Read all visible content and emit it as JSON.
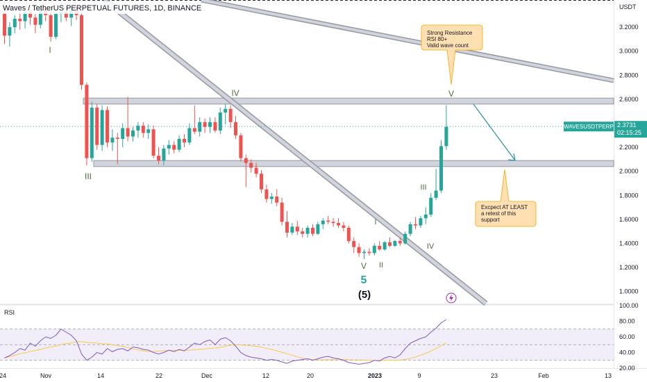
{
  "header": {
    "symbol_title": "Waves / TetherUS PERPETUAL FUTURES, 1D, BINANCE"
  },
  "price_axis": {
    "currency": "USDT",
    "ticks": [
      "3.2000",
      "3.0000",
      "2.8000",
      "2.6000",
      "2.4000",
      "2.2000",
      "2.0000",
      "1.8000",
      "1.6000",
      "1.4000",
      "1.2000",
      "1.0000"
    ]
  },
  "last_price": {
    "symbol": "WAVESUSDTPERP",
    "price": "2.3731",
    "countdown": "02:15:25"
  },
  "rsi_panel": {
    "label": "RSI",
    "ticks": [
      "100.00",
      "80.00",
      "60.00",
      "40.00",
      "20.00"
    ]
  },
  "time_axis": {
    "labels": [
      "24",
      "Nov",
      "14",
      "22",
      "Dec",
      "12",
      "20",
      "2023",
      "9",
      "23",
      "Feb",
      "13"
    ]
  },
  "annotations": {
    "callout_top": [
      "Strong Resistance",
      "RSI 80+",
      "Valid wave count"
    ],
    "callout_bottom": [
      "Excpect AT LEAST",
      "a retest of this",
      "support"
    ]
  },
  "wave_labels": {
    "i_top": "I",
    "iii": "III",
    "iv_top": "IV",
    "v_top": "V",
    "v_bottom": "V",
    "five": "5",
    "five_paren": "(5)",
    "i_small": "I",
    "ii_small": "II",
    "iii_small": "III",
    "iv_small": "IV"
  },
  "colors": {
    "up": "#26a69a",
    "down": "#ef5350",
    "zone": "#b2b5be",
    "trendline": "#9598a1",
    "callout_fill": "#ffe0b2",
    "callout_stroke": "#f7a600",
    "wave_label": "#4a6b3a",
    "arrow": "#2a8fa6",
    "rsi_line": "#7e57c2",
    "rsi_ma": "#f7c948",
    "rsi_band": "#ede7f6"
  },
  "chart_data": {
    "type": "candlestick",
    "title": "Waves / TetherUS PERPETUAL FUTURES, 1D, BINANCE",
    "ylim": [
      0.9,
      3.38
    ],
    "y_unit": "USDT",
    "candles": [
      [
        3.32,
        3.41,
        3.06,
        3.13
      ],
      [
        3.13,
        3.24,
        3.04,
        3.2
      ],
      [
        3.2,
        3.3,
        3.15,
        3.27
      ],
      [
        3.27,
        3.33,
        3.18,
        3.25
      ],
      [
        3.25,
        3.36,
        3.19,
        3.33
      ],
      [
        3.33,
        3.38,
        3.22,
        3.28
      ],
      [
        3.28,
        3.31,
        3.15,
        3.22
      ],
      [
        3.22,
        3.4,
        3.19,
        3.36
      ],
      [
        3.36,
        3.4,
        3.25,
        3.3
      ],
      [
        3.3,
        3.34,
        3.08,
        3.12
      ],
      [
        3.12,
        3.35,
        3.1,
        3.31
      ],
      [
        3.31,
        3.4,
        3.24,
        3.33
      ],
      [
        3.33,
        3.37,
        3.25,
        3.28
      ],
      [
        3.28,
        3.38,
        3.21,
        3.34
      ],
      [
        3.34,
        3.37,
        3.26,
        3.3
      ],
      [
        3.3,
        3.32,
        2.68,
        2.72
      ],
      [
        2.72,
        2.74,
        2.05,
        2.11
      ],
      [
        2.11,
        2.58,
        2.08,
        2.53
      ],
      [
        2.53,
        2.56,
        2.18,
        2.22
      ],
      [
        2.22,
        2.55,
        2.17,
        2.51
      ],
      [
        2.51,
        2.54,
        2.2,
        2.24
      ],
      [
        2.24,
        2.35,
        2.17,
        2.28
      ],
      [
        2.28,
        2.32,
        2.06,
        2.27
      ],
      [
        2.27,
        2.4,
        2.2,
        2.36
      ],
      [
        2.36,
        2.62,
        2.25,
        2.29
      ],
      [
        2.29,
        2.37,
        2.25,
        2.34
      ],
      [
        2.34,
        2.41,
        2.28,
        2.38
      ],
      [
        2.38,
        2.41,
        2.28,
        2.32
      ],
      [
        2.32,
        2.39,
        2.27,
        2.35
      ],
      [
        2.35,
        2.38,
        2.11,
        2.13
      ],
      [
        2.13,
        2.2,
        2.06,
        2.09
      ],
      [
        2.09,
        2.22,
        2.05,
        2.19
      ],
      [
        2.19,
        2.26,
        2.14,
        2.22
      ],
      [
        2.22,
        2.25,
        2.15,
        2.18
      ],
      [
        2.18,
        2.3,
        2.16,
        2.27
      ],
      [
        2.27,
        2.31,
        2.2,
        2.24
      ],
      [
        2.24,
        2.4,
        2.22,
        2.36
      ],
      [
        2.36,
        2.55,
        2.31,
        2.33
      ],
      [
        2.33,
        2.45,
        2.29,
        2.41
      ],
      [
        2.41,
        2.44,
        2.32,
        2.37
      ],
      [
        2.37,
        2.45,
        2.32,
        2.41
      ],
      [
        2.41,
        2.45,
        2.32,
        2.34
      ],
      [
        2.34,
        2.53,
        2.31,
        2.49
      ],
      [
        2.49,
        2.56,
        2.39,
        2.52
      ],
      [
        2.52,
        2.55,
        2.36,
        2.41
      ],
      [
        2.41,
        2.46,
        2.27,
        2.3
      ],
      [
        2.3,
        2.32,
        2.08,
        2.11
      ],
      [
        2.11,
        2.14,
        1.87,
        2.07
      ],
      [
        2.07,
        2.1,
        1.99,
        2.03
      ],
      [
        2.03,
        2.07,
        1.95,
        1.98
      ],
      [
        1.98,
        2.01,
        1.82,
        1.85
      ],
      [
        1.85,
        1.89,
        1.74,
        1.77
      ],
      [
        1.77,
        1.82,
        1.73,
        1.79
      ],
      [
        1.79,
        1.85,
        1.71,
        1.74
      ],
      [
        1.74,
        1.78,
        1.55,
        1.58
      ],
      [
        1.58,
        1.67,
        1.45,
        1.49
      ],
      [
        1.49,
        1.57,
        1.47,
        1.54
      ],
      [
        1.54,
        1.59,
        1.47,
        1.5
      ],
      [
        1.5,
        1.53,
        1.45,
        1.48
      ],
      [
        1.48,
        1.55,
        1.45,
        1.53
      ],
      [
        1.53,
        1.56,
        1.46,
        1.48
      ],
      [
        1.48,
        1.58,
        1.47,
        1.56
      ],
      [
        1.56,
        1.61,
        1.52,
        1.59
      ],
      [
        1.59,
        1.63,
        1.56,
        1.58
      ],
      [
        1.58,
        1.61,
        1.54,
        1.57
      ],
      [
        1.57,
        1.61,
        1.53,
        1.55
      ],
      [
        1.55,
        1.58,
        1.5,
        1.53
      ],
      [
        1.53,
        1.55,
        1.4,
        1.42
      ],
      [
        1.42,
        1.45,
        1.32,
        1.37
      ],
      [
        1.37,
        1.4,
        1.29,
        1.32
      ],
      [
        1.32,
        1.35,
        1.27,
        1.33
      ],
      [
        1.33,
        1.36,
        1.3,
        1.32
      ],
      [
        1.32,
        1.4,
        1.3,
        1.38
      ],
      [
        1.38,
        1.42,
        1.34,
        1.35
      ],
      [
        1.35,
        1.42,
        1.34,
        1.41
      ],
      [
        1.41,
        1.45,
        1.37,
        1.38
      ],
      [
        1.38,
        1.43,
        1.37,
        1.42
      ],
      [
        1.42,
        1.45,
        1.38,
        1.4
      ],
      [
        1.4,
        1.5,
        1.39,
        1.48
      ],
      [
        1.48,
        1.58,
        1.46,
        1.56
      ],
      [
        1.56,
        1.62,
        1.52,
        1.55
      ],
      [
        1.55,
        1.63,
        1.53,
        1.61
      ],
      [
        1.61,
        1.7,
        1.56,
        1.64
      ],
      [
        1.64,
        1.82,
        1.62,
        1.78
      ],
      [
        1.78,
        2.02,
        1.76,
        1.84
      ],
      [
        1.84,
        2.26,
        1.82,
        2.21
      ],
      [
        2.21,
        2.55,
        2.18,
        2.37
      ]
    ],
    "rsi": [
      33,
      36,
      40,
      45,
      43,
      52,
      48,
      55,
      60,
      58,
      62,
      70,
      66,
      62,
      55,
      38,
      30,
      34,
      40,
      38,
      45,
      41,
      44,
      45,
      42,
      47,
      46,
      44,
      43,
      40,
      38,
      40,
      43,
      41,
      44,
      42,
      47,
      52,
      50,
      54,
      56,
      50,
      57,
      59,
      55,
      48,
      40,
      36,
      34,
      33,
      32,
      30,
      31,
      30,
      28,
      26,
      29,
      30,
      31,
      32,
      30,
      32,
      34,
      35,
      33,
      32,
      30,
      27,
      26,
      25,
      26,
      27,
      30,
      29,
      33,
      35,
      33,
      37,
      45,
      52,
      55,
      58,
      60,
      66,
      71,
      78,
      82
    ],
    "rsi_ylim": [
      20,
      100
    ],
    "rsi_levels": [
      70,
      50,
      30
    ],
    "resistance_zone": [
      2.56,
      2.61
    ],
    "support_zone": [
      2.04,
      2.09
    ],
    "last_price_value": 2.3731
  }
}
